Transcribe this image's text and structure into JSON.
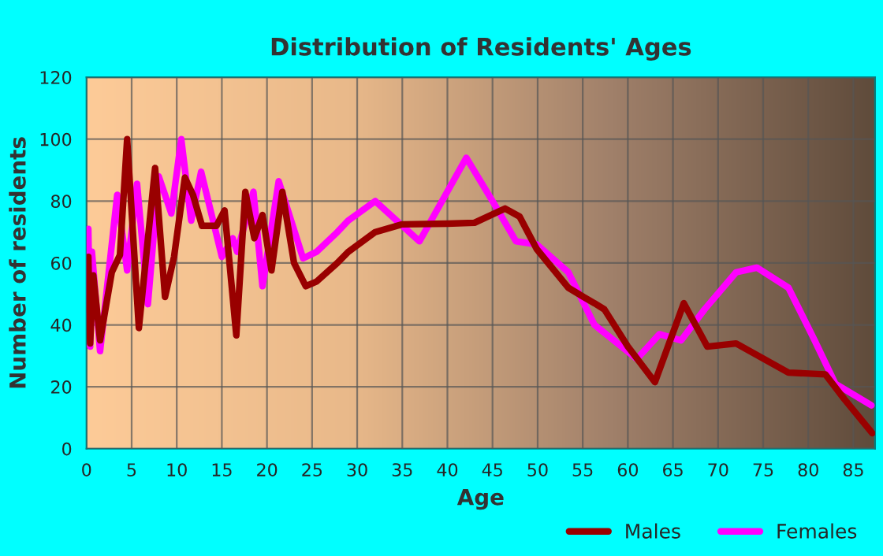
{
  "chart_data": {
    "type": "line",
    "title": "Distribution of Residents' Ages",
    "xlabel": "Age",
    "ylabel": "Number of residents",
    "xlim": [
      0,
      87.4
    ],
    "ylim": [
      0,
      120
    ],
    "xticks": [
      0,
      5,
      10,
      15,
      20,
      25,
      30,
      35,
      40,
      45,
      50,
      55,
      60,
      65,
      70,
      75,
      80,
      85
    ],
    "yticks": [
      0,
      20,
      40,
      60,
      80,
      100,
      120
    ],
    "grid": true,
    "legend": "bottom right",
    "line_style": "solid",
    "marker": "none",
    "series": [
      {
        "name": "Males",
        "color": "#990000",
        "x": [
          0,
          0.2,
          0.4,
          0.75,
          1.5,
          2.8,
          3.7,
          4.5,
          5.8,
          7.6,
          8.7,
          9.7,
          10.9,
          11.8,
          12.8,
          14.4,
          15.3,
          16.6,
          17.6,
          18.6,
          19.5,
          20.5,
          21.7,
          23,
          24.3,
          25.5,
          27.8,
          29,
          32,
          35,
          40,
          43,
          46.4,
          48,
          49.9,
          53.4,
          55.1,
          56.3,
          57.4,
          60,
          63,
          66.2,
          68.8,
          72,
          77.8,
          81.9,
          84,
          87.1
        ],
        "values": [
          45,
          62,
          34,
          56,
          35,
          57,
          62.6,
          100,
          39,
          90.7,
          49,
          62,
          87.6,
          82,
          72,
          72,
          77,
          36.6,
          83,
          68,
          75.5,
          57.6,
          83,
          60,
          52.5,
          54,
          60,
          63.6,
          70,
          72.5,
          72.7,
          73,
          77.6,
          75,
          64.5,
          52,
          49,
          47,
          45,
          33,
          21.5,
          47,
          33,
          34,
          24.6,
          24,
          16,
          5
        ]
      },
      {
        "name": "Females",
        "color": "#ff00ff",
        "x": [
          0,
          0.2,
          0.4,
          0.6,
          1.5,
          3.4,
          4.5,
          5.6,
          6.8,
          8,
          9.4,
          10.5,
          11.6,
          12.7,
          15,
          16.2,
          16.7,
          18.5,
          19.5,
          21.3,
          24,
          25.5,
          27.8,
          29,
          32,
          36.9,
          42.1,
          45,
          47.6,
          49.9,
          53.4,
          56.3,
          61,
          63.5,
          65.9,
          68.5,
          72,
          74.3,
          77.8,
          80.7,
          83,
          87
        ],
        "values": [
          60,
          71,
          33,
          63.6,
          31.5,
          82,
          57.6,
          85.6,
          46.7,
          88,
          76,
          100,
          73.7,
          89.5,
          62,
          68,
          63.6,
          83,
          52.5,
          86.4,
          61.5,
          63.6,
          70,
          73.7,
          80,
          67,
          94,
          80,
          67,
          66,
          57,
          40,
          29,
          37,
          35,
          45,
          57,
          58.5,
          52,
          35,
          21,
          14
        ]
      }
    ]
  }
}
